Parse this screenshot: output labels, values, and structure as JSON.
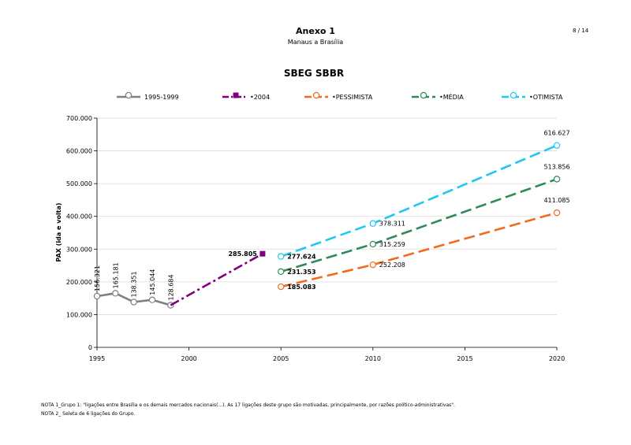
{
  "header": {
    "title": "Anexo 1",
    "subtitle": "Manaus a Brasília",
    "page": "8 / 14"
  },
  "chart_data": {
    "type": "line",
    "title": "SBEG SBBR",
    "ylabel": "PAX (ida e volta)",
    "xlabel": "",
    "xlim": [
      1995,
      2020
    ],
    "ylim": [
      0,
      700000
    ],
    "xticks": [
      "1995",
      "2000",
      "2005",
      "2010",
      "2015",
      "2020"
    ],
    "yticks": [
      "0",
      "100.000",
      "200.000",
      "300.000",
      "400.000",
      "500.000",
      "600.000",
      "700.000"
    ],
    "grid": "horizontal",
    "legend_position": "top",
    "series": [
      {
        "name": "1995-1999",
        "color": "#808080",
        "style": "solid",
        "marker": "open-circle",
        "points": [
          [
            1995,
            156321
          ],
          [
            1996,
            165181
          ],
          [
            1997,
            138351
          ],
          [
            1998,
            145044
          ],
          [
            1999,
            128684
          ]
        ],
        "labels": [
          "156.321",
          "165.181",
          "138.351",
          "145.044",
          "128.684"
        ]
      },
      {
        "name": "2004",
        "color": "#800080",
        "style": "dashdot",
        "marker": "square",
        "points": [
          [
            1999,
            128684
          ],
          [
            2004,
            285805
          ]
        ],
        "labels": [
          "",
          "285.805"
        ]
      },
      {
        "name": "PESSIMISTA",
        "color": "#f26b1d",
        "style": "dashed",
        "marker": "open-circle",
        "points": [
          [
            2005,
            185083
          ],
          [
            2010,
            252208
          ],
          [
            2020,
            411085
          ]
        ],
        "labels": [
          "185.083",
          "252.208",
          "411.085"
        ]
      },
      {
        "name": "MÉDIA",
        "color": "#2e8b57",
        "style": "dashed",
        "marker": "open-circle",
        "points": [
          [
            2005,
            231353
          ],
          [
            2010,
            315259
          ],
          [
            2020,
            513856
          ]
        ],
        "labels": [
          "231.353",
          "315.259",
          "513.856"
        ]
      },
      {
        "name": "OTIMISTA",
        "color": "#1ec8f0",
        "style": "dashed",
        "marker": "open-circle",
        "points": [
          [
            2005,
            277624
          ],
          [
            2010,
            378311
          ],
          [
            2020,
            616627
          ]
        ],
        "labels": [
          "277.624",
          "378.311",
          "616.627"
        ]
      }
    ]
  },
  "notes": {
    "note1": "NOTA 1_Grupo 1: \"ligações entre Brasília e os demais mercados nacionais(...). As 17 ligações deste grupo são motivadas, principalmente, por razões político-administrativas\".",
    "note2": "NOTA 2_ Seleta de 6 ligações do Grupo."
  }
}
